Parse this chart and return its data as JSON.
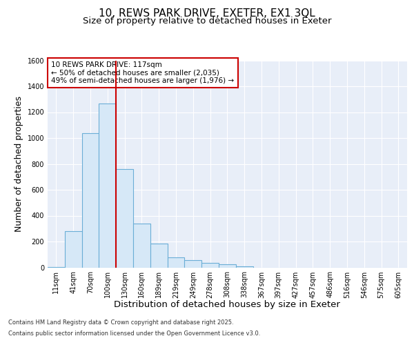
{
  "title": "10, REWS PARK DRIVE, EXETER, EX1 3QL",
  "subtitle": "Size of property relative to detached houses in Exeter",
  "xlabel": "Distribution of detached houses by size in Exeter",
  "ylabel": "Number of detached properties",
  "categories": [
    "11sqm",
    "41sqm",
    "70sqm",
    "100sqm",
    "130sqm",
    "160sqm",
    "189sqm",
    "219sqm",
    "249sqm",
    "278sqm",
    "308sqm",
    "338sqm",
    "367sqm",
    "397sqm",
    "427sqm",
    "457sqm",
    "486sqm",
    "516sqm",
    "546sqm",
    "575sqm",
    "605sqm"
  ],
  "values": [
    5,
    280,
    1040,
    1265,
    760,
    340,
    185,
    80,
    55,
    35,
    25,
    10,
    0,
    0,
    0,
    0,
    0,
    0,
    0,
    0,
    0
  ],
  "bar_color": "#d6e8f7",
  "bar_edge_color": "#6aaed6",
  "vline_x": 3.5,
  "vline_color": "#cc0000",
  "annotation_title": "10 REWS PARK DRIVE: 117sqm",
  "annotation_line1": "← 50% of detached houses are smaller (2,035)",
  "annotation_line2": "49% of semi-detached houses are larger (1,976) →",
  "annotation_box_facecolor": "#ffffff",
  "annotation_box_edgecolor": "#cc0000",
  "ylim": [
    0,
    1600
  ],
  "yticks": [
    0,
    200,
    400,
    600,
    800,
    1000,
    1200,
    1400,
    1600
  ],
  "fig_bg": "#ffffff",
  "plot_bg": "#e8eef8",
  "footer_line1": "Contains HM Land Registry data © Crown copyright and database right 2025.",
  "footer_line2": "Contains public sector information licensed under the Open Government Licence v3.0.",
  "title_fontsize": 11,
  "subtitle_fontsize": 9.5,
  "axis_label_fontsize": 9,
  "tick_fontsize": 7,
  "annotation_fontsize": 7.5,
  "footer_fontsize": 6
}
